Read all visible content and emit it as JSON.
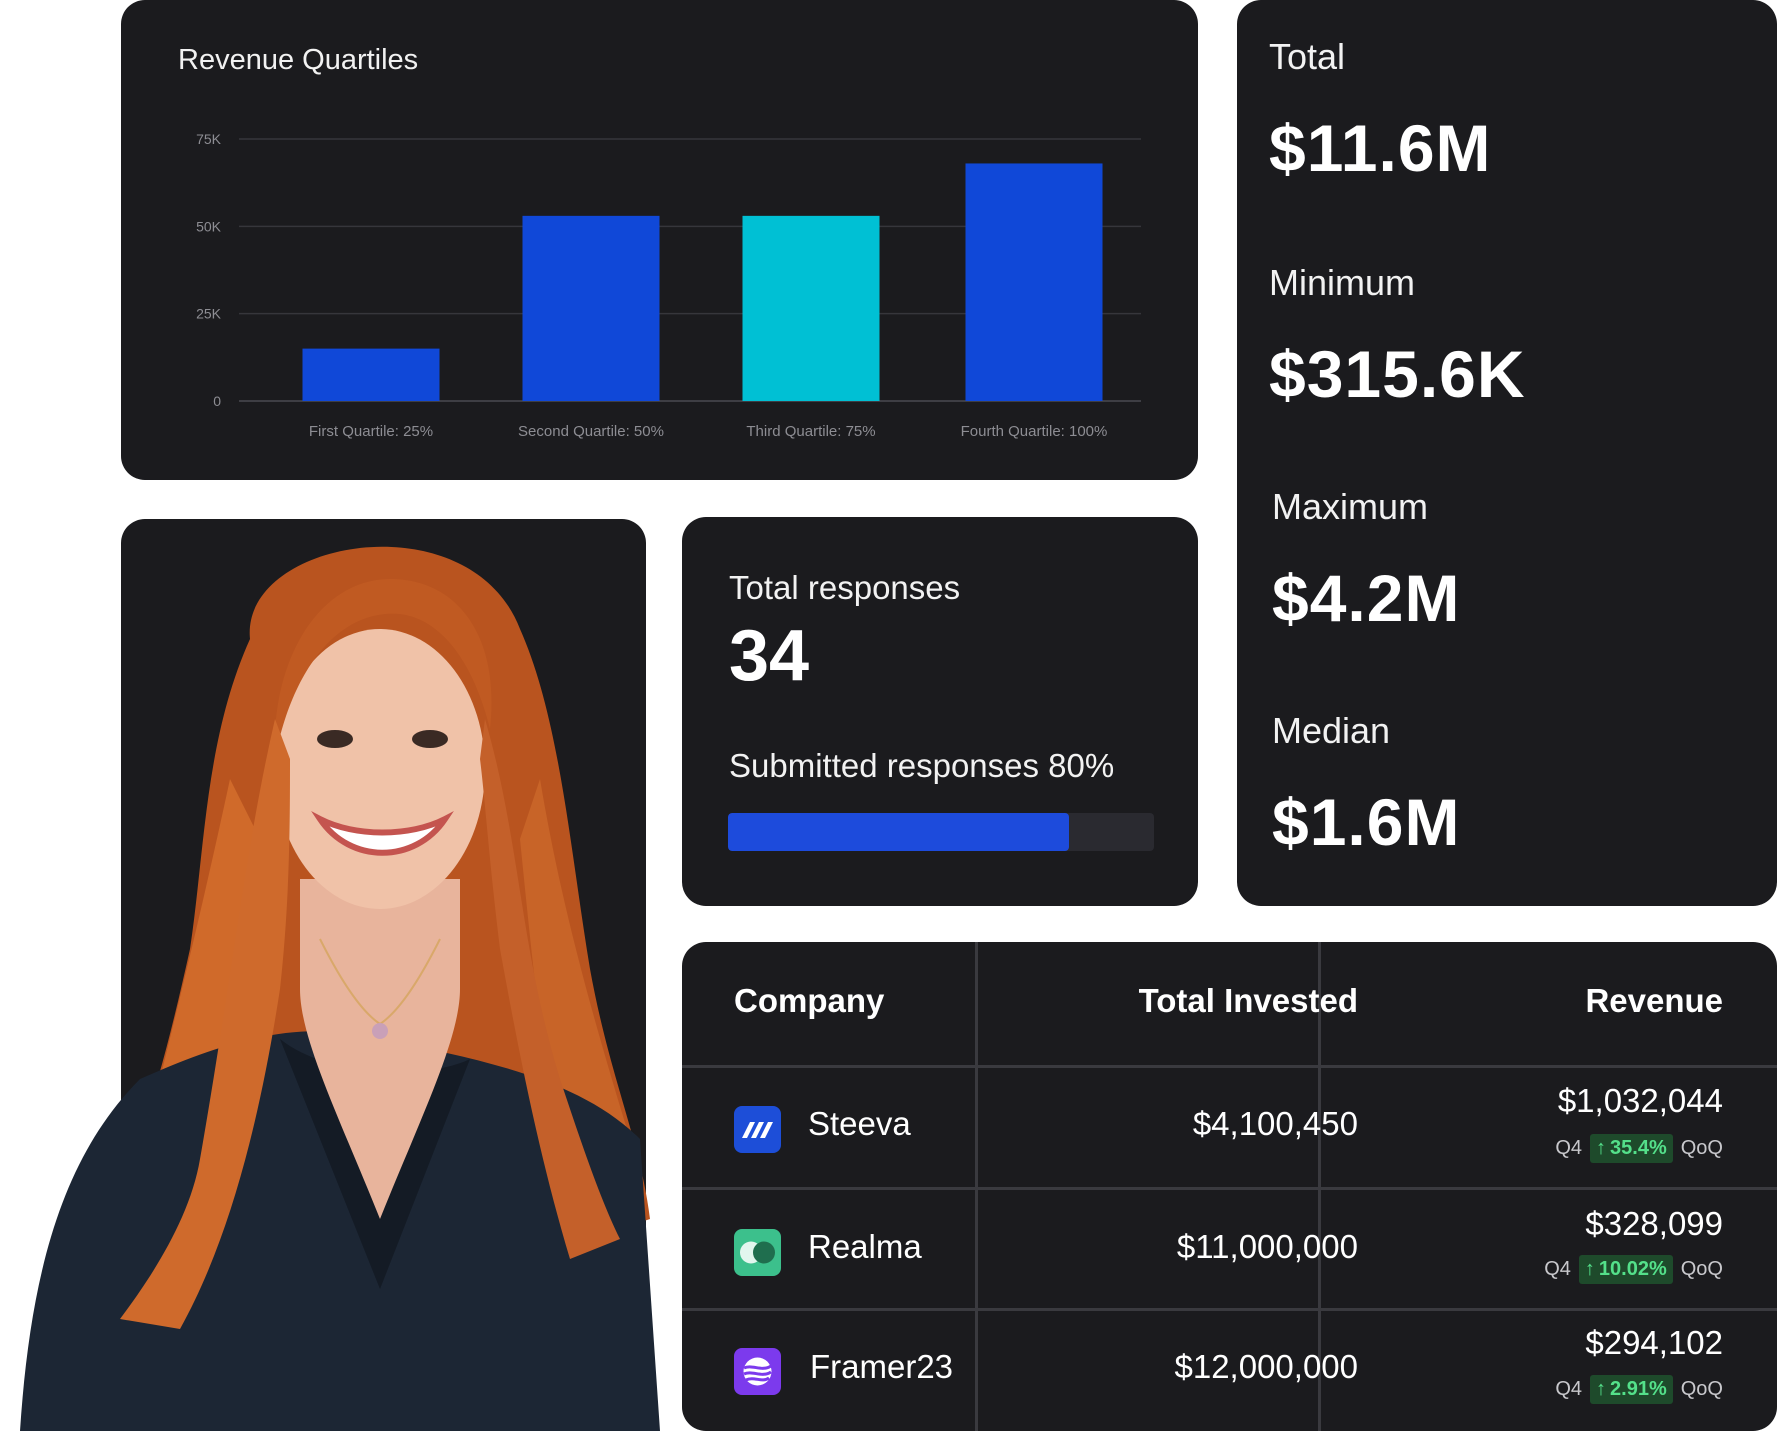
{
  "chart_data": {
    "type": "bar",
    "title": "Revenue Quartiles",
    "categories": [
      "First Quartile: 25%",
      "Second Quartile: 50%",
      "Third Quartile: 75%",
      "Fourth Quartile: 100%"
    ],
    "values": [
      15000,
      53000,
      53000,
      68000
    ],
    "bar_colors": [
      "#1048d8",
      "#1048d8",
      "#00c0d4",
      "#1048d8"
    ],
    "y_ticks": [
      0,
      25000,
      50000,
      75000
    ],
    "y_tick_labels": [
      "0",
      "25K",
      "50K",
      "75K"
    ],
    "ylim": [
      0,
      75000
    ],
    "grid": true
  },
  "stats": {
    "total_label": "Total",
    "total_value": "$11.6M",
    "minimum_label": "Minimum",
    "minimum_value": "$315.6K",
    "maximum_label": "Maximum",
    "maximum_value": "$4.2M",
    "median_label": "Median",
    "median_value": "$1.6M"
  },
  "responses": {
    "total_label": "Total responses",
    "total_count": "34",
    "submitted_label": "Submitted responses 80%",
    "submitted_fraction": 0.8
  },
  "table": {
    "headers": {
      "company": "Company",
      "invested": "Total Invested",
      "revenue": "Revenue"
    },
    "rows": [
      {
        "company": "Steeva",
        "logo": "steeva-logo-icon",
        "logo_color": "#1d4ed8",
        "invested": "$4,100,450",
        "revenue": "$1,032,044",
        "quarter": "Q4",
        "growth": "35.4%",
        "period": "QoQ"
      },
      {
        "company": "Realma",
        "logo": "realma-logo-icon",
        "logo_color": "#3cc08c",
        "invested": "$11,000,000",
        "revenue": "$328,099",
        "quarter": "Q4",
        "growth": "10.02%",
        "period": "QoQ"
      },
      {
        "company": "Framer23",
        "logo": "framer23-logo-icon",
        "logo_color": "#7c3aed",
        "invested": "$12,000,000",
        "revenue": "$294,102",
        "quarter": "Q4",
        "growth": "2.91%",
        "period": "QoQ"
      }
    ]
  },
  "colors": {
    "card": "#1b1b1e",
    "accent_blue": "#1d4bdc",
    "growth_green": "#54e08a"
  }
}
